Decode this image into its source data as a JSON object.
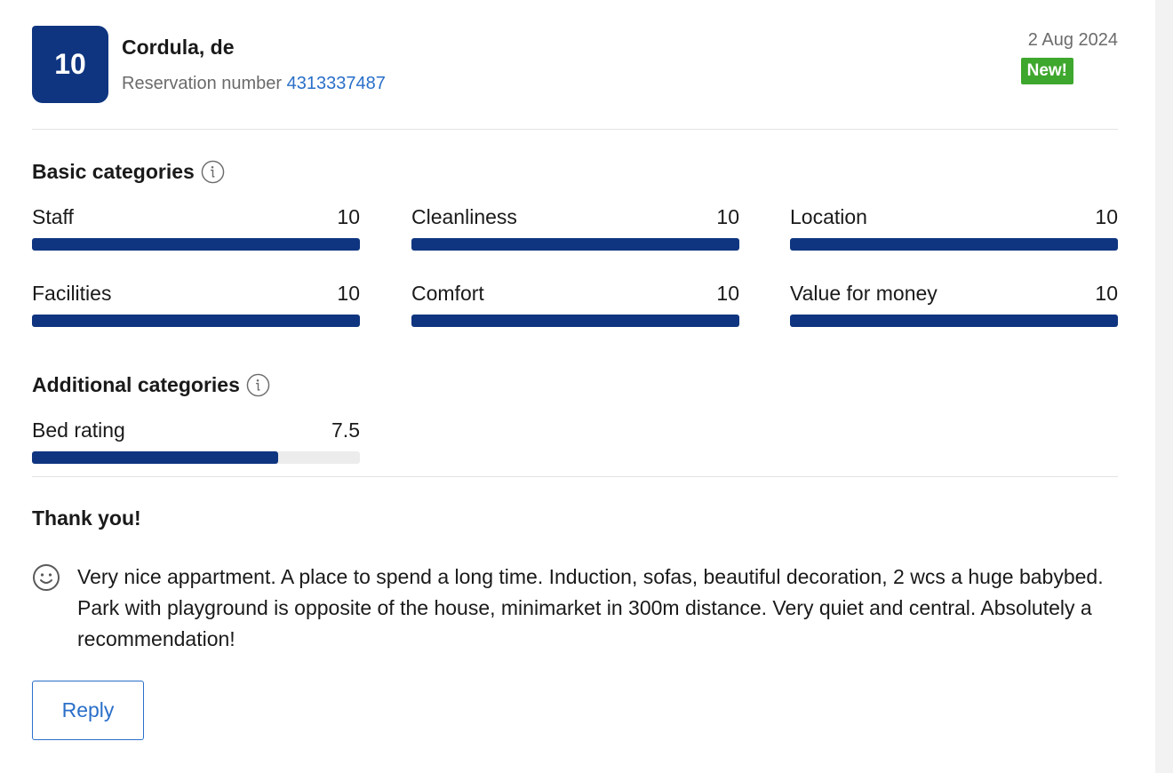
{
  "review": {
    "score": "10",
    "guest_name": "Cordula, de",
    "reservation_label": "Reservation number",
    "reservation_number": "4313337487",
    "date": "2 Aug 2024",
    "badge": "New!"
  },
  "basic": {
    "title": "Basic categories",
    "items": [
      {
        "label": "Staff",
        "value": "10",
        "fraction": 1.0
      },
      {
        "label": "Cleanliness",
        "value": "10",
        "fraction": 1.0
      },
      {
        "label": "Location",
        "value": "10",
        "fraction": 1.0
      },
      {
        "label": "Facilities",
        "value": "10",
        "fraction": 1.0
      },
      {
        "label": "Comfort",
        "value": "10",
        "fraction": 1.0
      },
      {
        "label": "Value for money",
        "value": "10",
        "fraction": 1.0
      }
    ]
  },
  "additional": {
    "title": "Additional categories",
    "items": [
      {
        "label": "Bed rating",
        "value": "7.5",
        "fraction": 0.75
      }
    ]
  },
  "comment": {
    "title": "Thank you!",
    "positive_icon": "smiley-icon",
    "text": "Very nice appartment. A place to spend a long time. Induction, sofas, beautiful decoration, 2 wcs a huge babybed. Park with playground is opposite of the house, minimarket in 300m distance. Very quiet and central. Absolutely a recommendation!"
  },
  "actions": {
    "reply_label": "Reply"
  },
  "colors": {
    "score_bg": "#0f3580",
    "bar_fill": "#0f3580",
    "badge_bg": "#3ea72d",
    "link": "#2a6fc9"
  }
}
